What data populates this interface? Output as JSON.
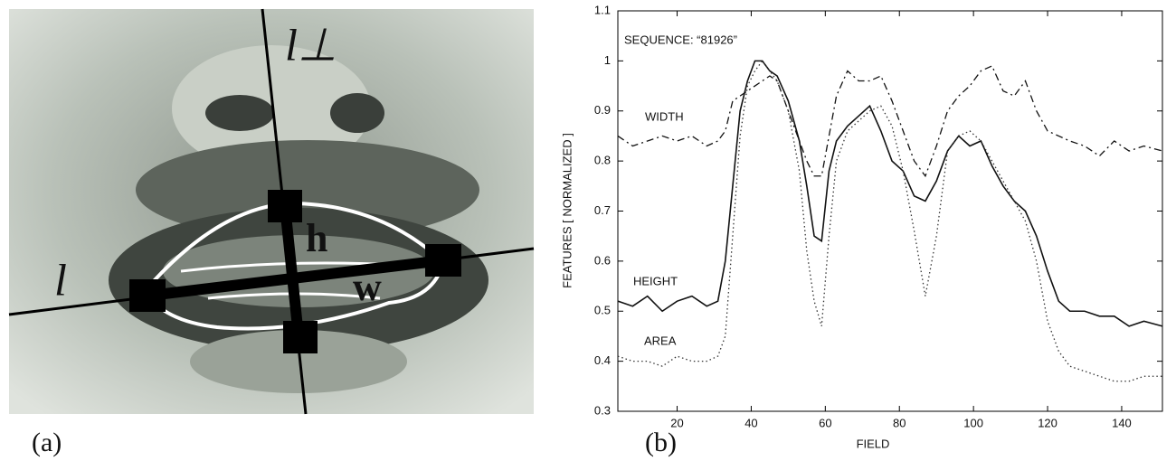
{
  "photo": {
    "axis_labels": [
      "l⊥",
      "l",
      "h",
      "w"
    ],
    "panel_label": "(a)"
  },
  "chart_data": {
    "type": "line",
    "panel_label": "(b)",
    "title": "SEQUENCE: “81926”",
    "x_label": "FIELD",
    "y_label": "FEATURES [ NORMALIZED ]",
    "x": [
      4,
      8,
      12,
      16,
      20,
      24,
      28,
      31,
      33,
      35,
      37,
      39,
      41,
      43,
      45,
      47,
      50,
      53,
      55,
      57,
      59,
      61,
      63,
      66,
      69,
      72,
      75,
      78,
      81,
      84,
      87,
      90,
      93,
      96,
      99,
      102,
      105,
      108,
      111,
      114,
      117,
      120,
      123,
      126,
      130,
      134,
      138,
      142,
      146,
      151
    ],
    "series": [
      {
        "name": "WIDTH",
        "color": "#111111",
        "line_style": "dashdot",
        "values": [
          0.85,
          0.83,
          0.84,
          0.85,
          0.84,
          0.85,
          0.83,
          0.84,
          0.86,
          0.92,
          0.93,
          0.94,
          0.95,
          0.96,
          0.97,
          0.96,
          0.9,
          0.84,
          0.8,
          0.77,
          0.77,
          0.85,
          0.93,
          0.98,
          0.96,
          0.96,
          0.97,
          0.92,
          0.86,
          0.8,
          0.77,
          0.83,
          0.9,
          0.93,
          0.95,
          0.98,
          0.99,
          0.94,
          0.93,
          0.96,
          0.9,
          0.86,
          0.85,
          0.84,
          0.83,
          0.81,
          0.84,
          0.82,
          0.83,
          0.82
        ]
      },
      {
        "name": "HEIGHT",
        "color": "#111111",
        "line_style": "solid",
        "values": [
          0.52,
          0.51,
          0.53,
          0.5,
          0.52,
          0.53,
          0.51,
          0.52,
          0.6,
          0.75,
          0.9,
          0.96,
          1.0,
          1.0,
          0.98,
          0.97,
          0.92,
          0.84,
          0.75,
          0.65,
          0.64,
          0.78,
          0.84,
          0.87,
          0.89,
          0.91,
          0.86,
          0.8,
          0.78,
          0.73,
          0.72,
          0.76,
          0.82,
          0.85,
          0.83,
          0.84,
          0.79,
          0.75,
          0.72,
          0.7,
          0.65,
          0.58,
          0.52,
          0.5,
          0.5,
          0.49,
          0.49,
          0.47,
          0.48,
          0.47
        ]
      },
      {
        "name": "AREA",
        "color": "#333333",
        "line_style": "dotted",
        "values": [
          0.41,
          0.4,
          0.4,
          0.39,
          0.41,
          0.4,
          0.4,
          0.41,
          0.45,
          0.65,
          0.85,
          0.95,
          0.98,
          1.0,
          0.98,
          0.96,
          0.9,
          0.78,
          0.62,
          0.52,
          0.47,
          0.65,
          0.8,
          0.86,
          0.88,
          0.9,
          0.91,
          0.87,
          0.78,
          0.66,
          0.53,
          0.65,
          0.82,
          0.85,
          0.86,
          0.84,
          0.8,
          0.76,
          0.72,
          0.68,
          0.6,
          0.48,
          0.42,
          0.39,
          0.38,
          0.37,
          0.36,
          0.36,
          0.37,
          0.37
        ]
      }
    ],
    "xlim": [
      4,
      151
    ],
    "xticks": [
      20,
      40,
      60,
      80,
      100,
      120,
      140
    ],
    "ylim": [
      0.3,
      1.1
    ],
    "yticks": [
      0.3,
      0.4,
      0.5,
      0.6,
      0.7,
      0.8,
      0.9,
      1,
      1.1
    ]
  }
}
